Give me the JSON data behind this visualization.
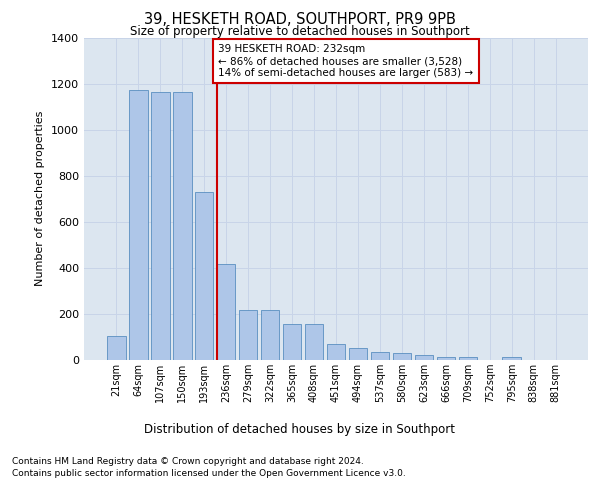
{
  "title": "39, HESKETH ROAD, SOUTHPORT, PR9 9PB",
  "subtitle": "Size of property relative to detached houses in Southport",
  "xlabel": "Distribution of detached houses by size in Southport",
  "ylabel": "Number of detached properties",
  "categories": [
    "21sqm",
    "64sqm",
    "107sqm",
    "150sqm",
    "193sqm",
    "236sqm",
    "279sqm",
    "322sqm",
    "365sqm",
    "408sqm",
    "451sqm",
    "494sqm",
    "537sqm",
    "580sqm",
    "623sqm",
    "666sqm",
    "709sqm",
    "752sqm",
    "795sqm",
    "838sqm",
    "881sqm"
  ],
  "values": [
    105,
    1170,
    1165,
    1165,
    730,
    415,
    215,
    215,
    155,
    155,
    70,
    50,
    35,
    30,
    20,
    15,
    15,
    0,
    15,
    0,
    0
  ],
  "bar_color": "#aec6e8",
  "bar_edge_color": "#5a8fc0",
  "highlight_index": 5,
  "highlight_color": "#cc0000",
  "annotation_text": "39 HESKETH ROAD: 232sqm\n← 86% of detached houses are smaller (3,528)\n14% of semi-detached houses are larger (583) →",
  "annotation_box_color": "#ffffff",
  "annotation_box_edge": "#cc0000",
  "ylim": [
    0,
    1400
  ],
  "yticks": [
    0,
    200,
    400,
    600,
    800,
    1000,
    1200,
    1400
  ],
  "grid_color": "#c8d4e8",
  "background_color": "#dce6f0",
  "footer1": "Contains HM Land Registry data © Crown copyright and database right 2024.",
  "footer2": "Contains public sector information licensed under the Open Government Licence v3.0."
}
